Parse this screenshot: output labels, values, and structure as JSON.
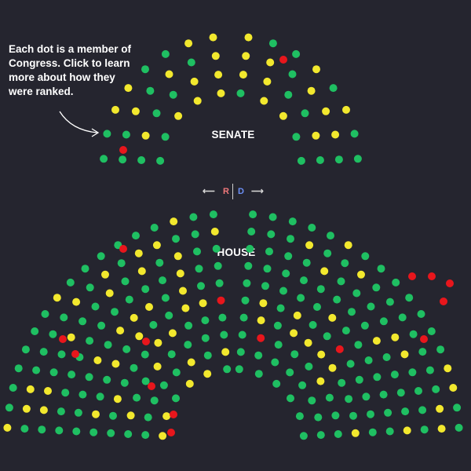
{
  "annotation": "Each dot is a member of Congress. Click to learn more about how they were ranked.",
  "senate": {
    "label": "SENATE"
  },
  "house": {
    "label": "HOUSE"
  },
  "legend": {
    "left_arrow": "⟵",
    "r_label": "R",
    "d_label": "D",
    "right_arrow": "⟶"
  },
  "colors": {
    "background": "#25252f",
    "green": "#1fbf62",
    "yellow": "#f2e82e",
    "red": "#e8161c",
    "r_text": "#f0787b",
    "d_text": "#6c8ff5"
  },
  "icons": [
    "curved-arrow-icon",
    "left-arrow-icon",
    "right-arrow-icon"
  ]
}
